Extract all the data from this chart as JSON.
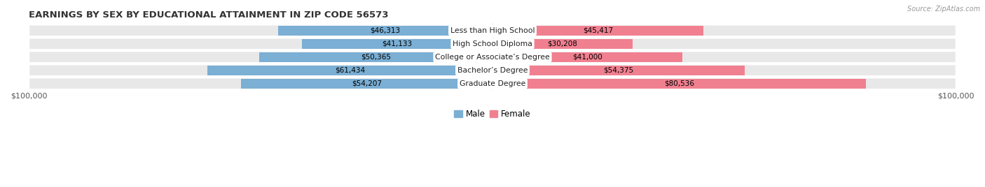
{
  "title": "EARNINGS BY SEX BY EDUCATIONAL ATTAINMENT IN ZIP CODE 56573",
  "source": "Source: ZipAtlas.com",
  "categories": [
    "Less than High School",
    "High School Diploma",
    "College or Associate’s Degree",
    "Bachelor’s Degree",
    "Graduate Degree"
  ],
  "male_values": [
    46313,
    41133,
    50365,
    61434,
    54207
  ],
  "female_values": [
    45417,
    30208,
    41000,
    54375,
    80536
  ],
  "male_labels": [
    "$46,313",
    "$41,133",
    "$50,365",
    "$61,434",
    "$54,207"
  ],
  "female_labels": [
    "$45,417",
    "$30,208",
    "$41,000",
    "$54,375",
    "$80,536"
  ],
  "male_color": "#7BAFD4",
  "female_color": "#F08090",
  "row_bg_color": "#E8E8E8",
  "axis_max": 100000,
  "background_color": "#FFFFFF",
  "xlim": 100000,
  "legend_male_label": "Male",
  "legend_female_label": "Female"
}
